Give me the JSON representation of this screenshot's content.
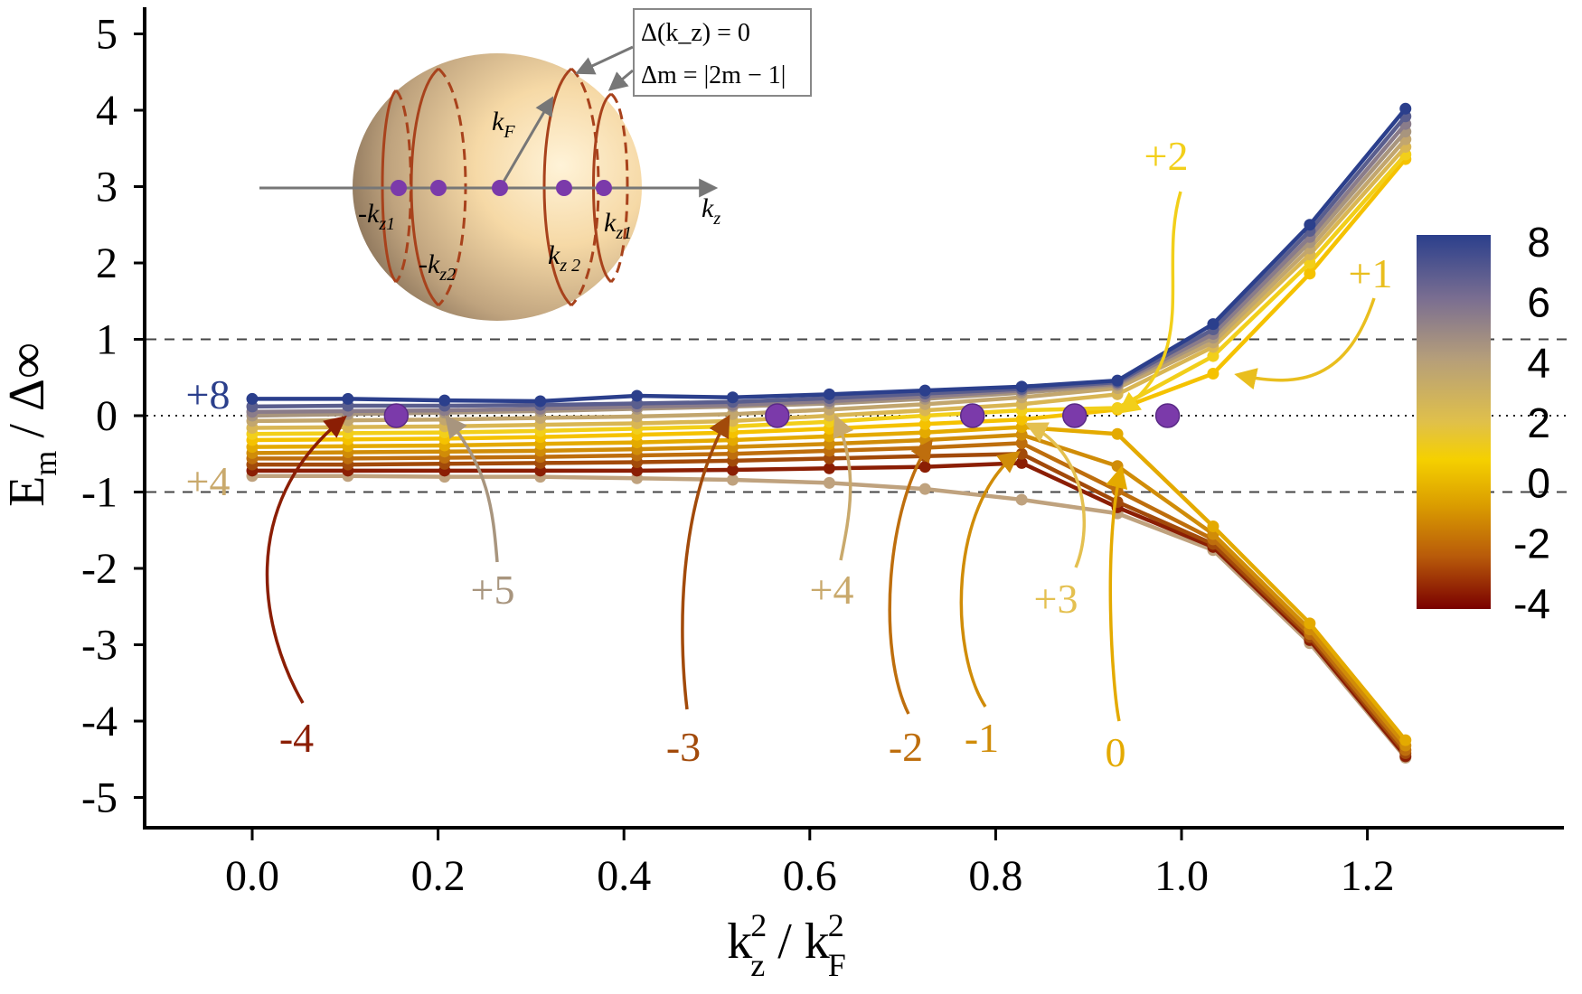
{
  "chart_data": {
    "type": "line",
    "xlim": [
      -0.12,
      1.42
    ],
    "ylim": [
      -5.3,
      5.3
    ],
    "x_ticks": [
      "0.0",
      "0.2",
      "0.4",
      "0.6",
      "0.8",
      "1.0",
      "1.2"
    ],
    "x_tick_values": [
      0.0,
      0.2,
      0.4,
      0.6,
      0.8,
      1.0,
      1.2
    ],
    "y_ticks": [
      "5",
      "4",
      "3",
      "2",
      "1",
      "0",
      "-1",
      "-2",
      "-3",
      "-4",
      "-5"
    ],
    "y_tick_values": [
      5,
      4,
      3,
      2,
      1,
      0,
      -1,
      -2,
      -3,
      -4,
      -5
    ],
    "xlabel": {
      "main": "k",
      "sup": "2",
      "sub": "z",
      "slash": " / k",
      "sup2": "2",
      "sub2": "F"
    },
    "ylabel": {
      "main": "E",
      "sub": "m",
      "rest": " / Δ∞"
    },
    "reference_lines": [
      {
        "y": 1,
        "style": "dashed"
      },
      {
        "y": 0,
        "style": "dotted"
      },
      {
        "y": -1,
        "style": "dashed"
      }
    ],
    "x": [
      0.0,
      0.103,
      0.207,
      0.31,
      0.414,
      0.517,
      0.621,
      0.724,
      0.828,
      0.931,
      1.034,
      1.138,
      1.241
    ],
    "colorbar": {
      "min": -4,
      "max": 8,
      "labels": [
        "8",
        "6",
        "4",
        "2",
        "0",
        "-2",
        "-4"
      ],
      "stops": [
        "#2B3F8C",
        "#7A6E91",
        "#B59E7A",
        "#E0C04A",
        "#F5D000",
        "#DB9E00",
        "#B85A0A",
        "#7A0000"
      ]
    },
    "series": [
      {
        "m": 8,
        "color": "#2B3F8C",
        "values": [
          0.22,
          0.22,
          0.2,
          0.19,
          0.26,
          0.24,
          0.28,
          0.33,
          0.38,
          0.46,
          1.2,
          2.5,
          4.02
        ]
      },
      {
        "m": 7,
        "color": "#5A5E8E",
        "values": [
          0.12,
          0.13,
          0.13,
          0.14,
          0.16,
          0.18,
          0.23,
          0.29,
          0.35,
          0.44,
          1.13,
          2.42,
          3.92
        ]
      },
      {
        "m": 6,
        "color": "#8A7C8A",
        "values": [
          0.05,
          0.06,
          0.07,
          0.09,
          0.12,
          0.14,
          0.19,
          0.25,
          0.33,
          0.42,
          1.07,
          2.34,
          3.82
        ]
      },
      {
        "m": 5,
        "color": "#A8957E",
        "values": [
          0.0,
          0.02,
          0.04,
          0.06,
          0.09,
          0.12,
          0.16,
          0.22,
          0.3,
          0.4,
          1.02,
          2.27,
          3.72
        ]
      },
      {
        "m": 4,
        "color": "#C2A66E",
        "values": [
          -0.07,
          -0.06,
          -0.05,
          -0.03,
          -0.01,
          0.02,
          0.08,
          0.15,
          0.24,
          0.36,
          0.96,
          2.19,
          3.62
        ]
      },
      {
        "m": 3,
        "color": "#D9B653",
        "values": [
          -0.16,
          -0.15,
          -0.14,
          -0.12,
          -0.1,
          -0.07,
          0.0,
          0.07,
          0.15,
          0.28,
          0.9,
          2.11,
          3.52
        ]
      },
      {
        "m": 2,
        "color": "#F2CF1A",
        "values": [
          -0.24,
          -0.23,
          -0.22,
          -0.2,
          -0.17,
          -0.14,
          -0.08,
          0.0,
          0.07,
          0.1,
          0.78,
          2.0,
          3.42
        ]
      },
      {
        "m": 1,
        "color": "#F5C200",
        "values": [
          -0.32,
          -0.31,
          -0.3,
          -0.28,
          -0.25,
          -0.22,
          -0.17,
          -0.11,
          -0.05,
          0.08,
          0.55,
          1.86,
          3.36
        ]
      },
      {
        "m": 0,
        "color": "#E4AA00",
        "values": [
          -0.41,
          -0.4,
          -0.39,
          -0.37,
          -0.35,
          -0.32,
          -0.27,
          -0.22,
          -0.15,
          -0.24,
          -1.45,
          -2.72,
          -4.25
        ]
      },
      {
        "m": -1,
        "color": "#D08C08",
        "values": [
          -0.49,
          -0.48,
          -0.47,
          -0.46,
          -0.44,
          -0.41,
          -0.37,
          -0.32,
          -0.25,
          -0.66,
          -1.55,
          -2.8,
          -4.32
        ]
      },
      {
        "m": -2,
        "color": "#BE6E0D",
        "values": [
          -0.56,
          -0.56,
          -0.55,
          -0.54,
          -0.52,
          -0.5,
          -0.46,
          -0.42,
          -0.36,
          -0.98,
          -1.62,
          -2.86,
          -4.38
        ]
      },
      {
        "m": -3,
        "color": "#A24A0A",
        "values": [
          -0.64,
          -0.64,
          -0.63,
          -0.62,
          -0.61,
          -0.59,
          -0.56,
          -0.53,
          -0.5,
          -1.13,
          -1.68,
          -2.9,
          -4.42
        ]
      },
      {
        "m": -4,
        "color": "#8B1E04",
        "values": [
          -0.72,
          -0.72,
          -0.72,
          -0.72,
          -0.72,
          -0.71,
          -0.69,
          -0.67,
          -0.62,
          -1.2,
          -1.72,
          -2.94,
          -4.46
        ]
      },
      {
        "m": -5,
        "color": "#BFA27E",
        "values": [
          -0.79,
          -0.79,
          -0.8,
          -0.8,
          -0.82,
          -0.84,
          -0.88,
          -0.96,
          -1.1,
          -1.28,
          -1.76,
          -2.98,
          -4.48
        ]
      }
    ],
    "zero_points_x": [
      0.155,
      0.565,
      0.775,
      0.885,
      0.985
    ],
    "annotations": [
      {
        "label": "+8",
        "color": "#2B3F8C"
      },
      {
        "label": "+4",
        "color": "#C9A96C"
      },
      {
        "label": "-4",
        "color": "#8B1E04"
      },
      {
        "label": "+5",
        "color": "#A8957E"
      },
      {
        "label": "-3",
        "color": "#A24A0A"
      },
      {
        "label": "+4",
        "color": "#C9A96C"
      },
      {
        "label": "-2",
        "color": "#BE6E0D"
      },
      {
        "label": "-1",
        "color": "#D08C08"
      },
      {
        "label": "+3",
        "color": "#E4C050"
      },
      {
        "label": "0",
        "color": "#E4AA00"
      },
      {
        "label": "+2",
        "color": "#F2CF1A"
      },
      {
        "label": "+1",
        "color": "#E9BE1E"
      }
    ],
    "inset": {
      "kF": "k",
      "kF_sub": "F",
      "kz": "k",
      "kz_sub": "z",
      "minus_kz1": "-k",
      "minus_kz1_sub": "z1",
      "minus_kz2": "-k",
      "minus_kz2_sub": "z2",
      "kz2": "k",
      "kz2_sub": "z 2",
      "kz1": "k",
      "kz1_sub": "z1",
      "box_line1": "Δ(k_z) = 0",
      "box_line2": "Δm = |2m − 1|"
    }
  }
}
